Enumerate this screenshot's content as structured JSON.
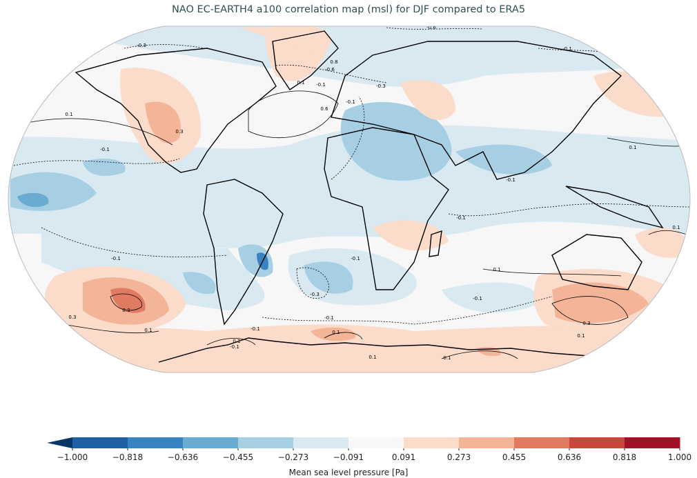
{
  "title": "NAO EC-EARTH4 a100 correlation map (msl) for DJF compared to ERA5",
  "projection": "robinson",
  "colorbar": {
    "label": "Mean sea level pressure [Pa]",
    "ticks": [
      "−1.000",
      "−0.818",
      "−0.636",
      "−0.455",
      "−0.273",
      "−0.091",
      "0.091",
      "0.273",
      "0.455",
      "0.636",
      "0.818",
      "1.000"
    ],
    "colors": [
      "#1f5fa4",
      "#3983c0",
      "#6aacd1",
      "#a7cfe4",
      "#d9e9f2",
      "#f7f7f7",
      "#fbdbc9",
      "#f3b497",
      "#e07b62",
      "#c9463d",
      "#a11228"
    ],
    "under_color": "#0a3667",
    "over_color": "#67001f",
    "extend": "both"
  },
  "contour_labels": [
    "-0.6",
    "-0.3",
    "0.8",
    "-0.6",
    "0.1",
    "-0.1",
    "0.6",
    "0.1",
    "0.3",
    "-0.1",
    "0.1",
    "-0.1",
    "-0.1",
    "-0.3",
    "-0.1",
    "-0.1",
    "0.1",
    "-0.1",
    "-0.1",
    "0.1",
    "-0.3",
    "-0.1",
    "0.3",
    "0.3",
    "0.1",
    "-0.1",
    "0.3",
    "0.1",
    "0.1",
    "-0.1",
    "0.1",
    "-0.1",
    "0.1",
    "0.1"
  ]
}
